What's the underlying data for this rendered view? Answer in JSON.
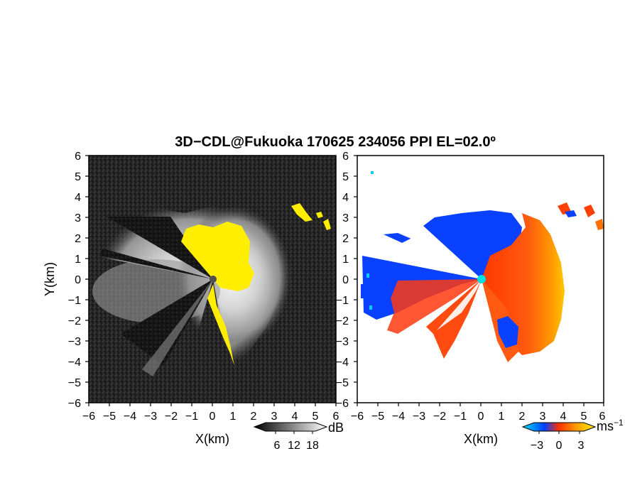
{
  "chart_data": [
    {
      "type": "heatmap",
      "title": "3D−CDL@Fukuoka 170625 234056 PPI EL=02.0º",
      "xlabel": "X(km)",
      "ylabel": "Y(km)",
      "xlim": [
        -6,
        6
      ],
      "ylim": [
        -6,
        6
      ],
      "x_ticks": [
        "−6",
        "−5",
        "−4",
        "−3",
        "−2",
        "−1",
        "0",
        "1",
        "2",
        "3",
        "4",
        "5",
        "6"
      ],
      "y_ticks": [
        "6",
        "5",
        "4",
        "3",
        "2",
        "1",
        "0",
        "−1",
        "−2",
        "−3",
        "−4",
        "−5",
        "−6"
      ],
      "colorbar": {
        "ticks": [
          "6",
          "12",
          "18"
        ],
        "unit": "dB",
        "colors": [
          "#000000",
          "#ffffff"
        ]
      },
      "highlight_color": "#ffee00",
      "grid": false
    },
    {
      "type": "heatmap",
      "xlabel": "X(km)",
      "xlim": [
        -6,
        6
      ],
      "ylim": [
        -6,
        6
      ],
      "x_ticks": [
        "−6",
        "−5",
        "−4",
        "−3",
        "−2",
        "−1",
        "0",
        "1",
        "2",
        "3",
        "4",
        "5",
        "6"
      ],
      "y_ticks": [
        "6",
        "5",
        "4",
        "3",
        "2",
        "1",
        "0",
        "−1",
        "−2",
        "−3",
        "−4",
        "−5",
        "−6"
      ],
      "colorbar": {
        "ticks": [
          "−3",
          "0",
          "3"
        ],
        "unit": "ms",
        "unit_exp": "−1",
        "colors": [
          "#00e0ff",
          "#0040ff",
          "#ff3000",
          "#ffa000",
          "#ffee00"
        ]
      },
      "grid": false
    }
  ]
}
